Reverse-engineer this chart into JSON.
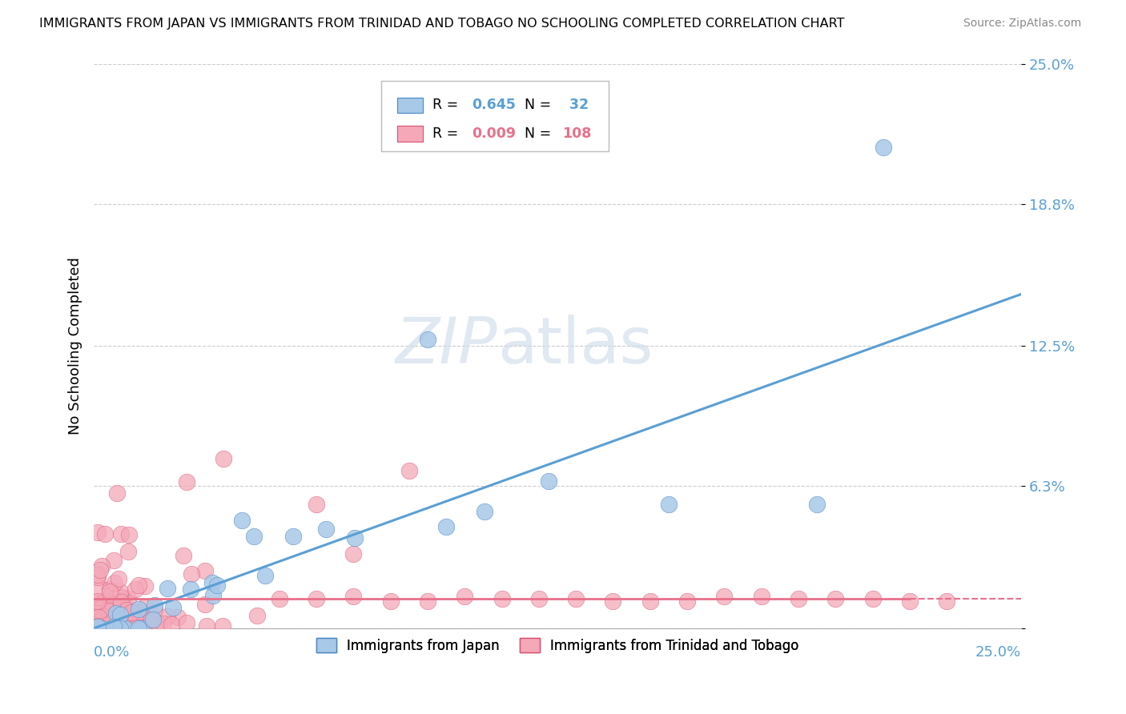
{
  "title": "IMMIGRANTS FROM JAPAN VS IMMIGRANTS FROM TRINIDAD AND TOBAGO NO SCHOOLING COMPLETED CORRELATION CHART",
  "source": "Source: ZipAtlas.com",
  "ylabel": "No Schooling Completed",
  "ytick_labels": [
    "",
    "6.3%",
    "12.5%",
    "18.8%",
    "25.0%"
  ],
  "ytick_values": [
    0,
    0.063,
    0.125,
    0.188,
    0.25
  ],
  "xlim": [
    0,
    0.25
  ],
  "ylim": [
    0,
    0.25
  ],
  "color_japan": "#a8c8e8",
  "color_tt": "#f4a8b8",
  "color_japan_line": "#5a9fd4",
  "color_tt_line": "#e8708a",
  "color_japan_dark": "#4a86c4",
  "color_tt_dark": "#d85070",
  "background_color": "#ffffff",
  "grid_color": "#cccccc",
  "japan_line_start_y": 0.0,
  "japan_line_end_y": 0.148,
  "tt_line_y": 0.013
}
